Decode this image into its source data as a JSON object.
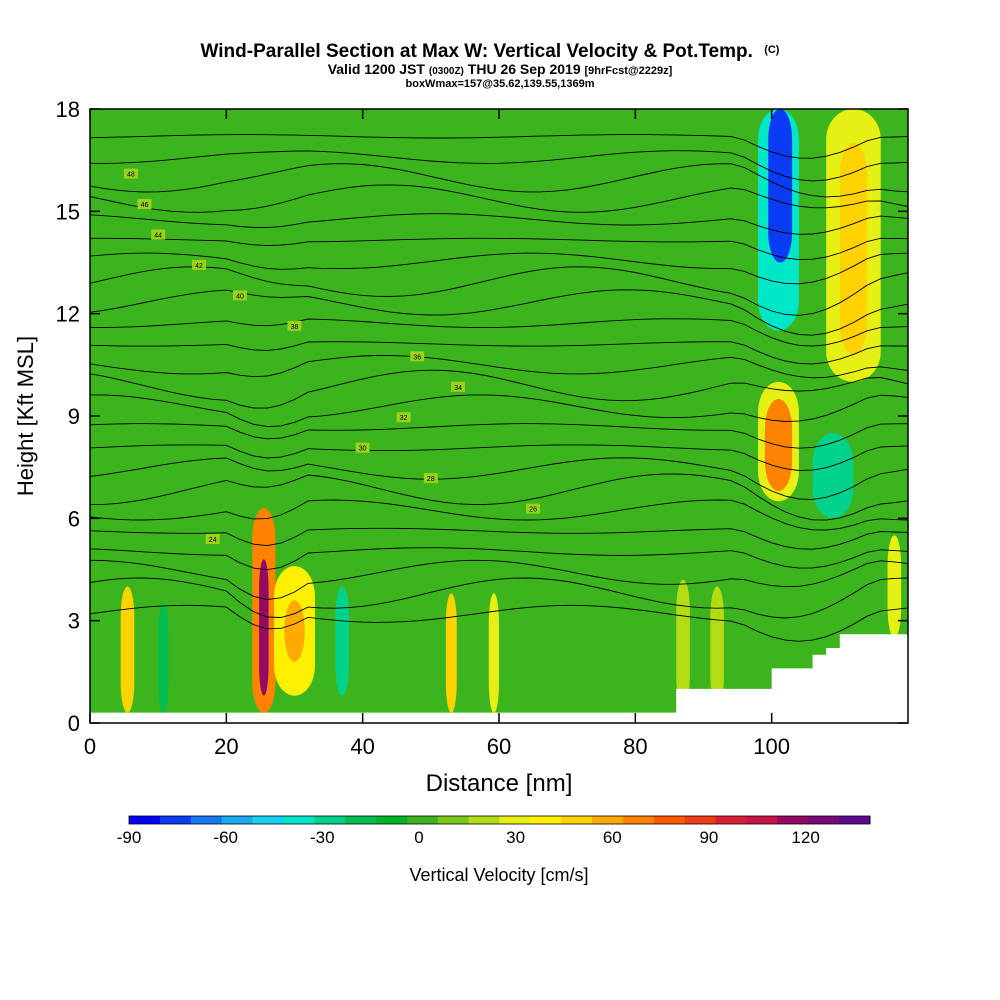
{
  "chart_data": {
    "type": "heatmap",
    "title": "Wind-Parallel Section at Max W: Vertical Velocity & Pot.Temp.",
    "title_mark": "(C)",
    "subtitle_parts": [
      "Valid 1200 JST ",
      "(0300Z)",
      " THU 26 Sep 2019 ",
      "[9hrFcst@2229z]"
    ],
    "subtitle2": "boxWmax=157@35.62,139.55,1369m",
    "xlabel": "Distance [nm]",
    "ylabel": "Height [Kft MSL]",
    "xlim": [
      0,
      120
    ],
    "ylim": [
      0,
      18
    ],
    "x_ticks": [
      0,
      20,
      40,
      60,
      80,
      100
    ],
    "y_ticks": [
      0,
      3,
      6,
      9,
      12,
      15,
      18
    ],
    "colorbar_label": "Vertical Velocity [cm/s]",
    "colorbar_range": [
      -90,
      130
    ],
    "colorbar_step": 10,
    "colorbar_ticks": [
      -90,
      -60,
      -30,
      0,
      30,
      60,
      90,
      120
    ],
    "colorbar_colors": [
      "#0000ff",
      "#0a3cf5",
      "#1478f0",
      "#19aaf0",
      "#14d2f0",
      "#00e6c8",
      "#00d28c",
      "#00be50",
      "#00b428",
      "#3cb41e",
      "#78c814",
      "#b4dc14",
      "#e6f014",
      "#fff000",
      "#ffd200",
      "#ffaa00",
      "#ff8200",
      "#ff5a00",
      "#f03c14",
      "#dc1e32",
      "#c8144b",
      "#960a64",
      "#780a78",
      "#5a0a8c"
    ],
    "cells": [
      {
        "x": [
          0,
          120
        ],
        "y": [
          0.3,
          18
        ],
        "w": 2
      },
      {
        "x": [
          4.5,
          6.5
        ],
        "y": [
          0.3,
          4.0
        ],
        "w": 50
      },
      {
        "x": [
          10,
          11.5
        ],
        "y": [
          0.3,
          3.5
        ],
        "w": -15
      },
      {
        "x": [
          23.8,
          27.2
        ],
        "y": [
          0.3,
          6.3
        ],
        "w": 75
      },
      {
        "x": [
          24.8,
          26.2
        ],
        "y": [
          0.8,
          4.8
        ],
        "w": 128
      },
      {
        "x": [
          27,
          33
        ],
        "y": [
          0.8,
          4.6
        ],
        "w": 45
      },
      {
        "x": [
          28.5,
          31.5
        ],
        "y": [
          1.8,
          3.6
        ],
        "w": 60
      },
      {
        "x": [
          36,
          38
        ],
        "y": [
          0.8,
          4.0
        ],
        "w": -30
      },
      {
        "x": [
          52.2,
          53.8
        ],
        "y": [
          0.3,
          3.8
        ],
        "w": 50
      },
      {
        "x": [
          58.5,
          60
        ],
        "y": [
          0.3,
          3.8
        ],
        "w": 35
      },
      {
        "x": [
          86,
          88
        ],
        "y": [
          0.5,
          4.2
        ],
        "w": 28
      },
      {
        "x": [
          91,
          93
        ],
        "y": [
          0.5,
          4.0
        ],
        "w": 25
      },
      {
        "x": [
          98,
          104
        ],
        "y": [
          6.5,
          10.0
        ],
        "w": 35
      },
      {
        "x": [
          99,
          103
        ],
        "y": [
          6.8,
          9.5
        ],
        "w": 70
      },
      {
        "x": [
          98,
          104
        ],
        "y": [
          11.5,
          18
        ],
        "w": -35
      },
      {
        "x": [
          99.5,
          103
        ],
        "y": [
          13.5,
          18
        ],
        "w": -75
      },
      {
        "x": [
          108,
          116
        ],
        "y": [
          10.0,
          18
        ],
        "w": 35
      },
      {
        "x": [
          110,
          114
        ],
        "y": [
          10.8,
          17.0
        ],
        "w": 55
      },
      {
        "x": [
          106,
          112
        ],
        "y": [
          6.0,
          8.5
        ],
        "w": -30
      },
      {
        "x": [
          117,
          119
        ],
        "y": [
          2.5,
          5.5
        ],
        "w": 35
      }
    ],
    "theta_levels": [
      302,
      304,
      306,
      308,
      310,
      312,
      314,
      316,
      318,
      320,
      322,
      324,
      326,
      328,
      330,
      332,
      334,
      336,
      338,
      340,
      342,
      344,
      346,
      348
    ],
    "contour_labels": [
      "24",
      "26",
      "28",
      "30",
      "32",
      "34",
      "36",
      "38",
      "40",
      "42",
      "44",
      "46",
      "48"
    ],
    "terrain": [
      [
        80,
        0.3
      ],
      [
        86,
        0.3
      ],
      [
        86,
        1.0
      ],
      [
        100,
        1.0
      ],
      [
        100,
        1.6
      ],
      [
        106,
        1.6
      ],
      [
        106,
        2.0
      ],
      [
        108,
        2.0
      ],
      [
        108,
        2.2
      ],
      [
        110,
        2.2
      ],
      [
        110,
        2.6
      ],
      [
        120,
        2.6
      ]
    ]
  }
}
